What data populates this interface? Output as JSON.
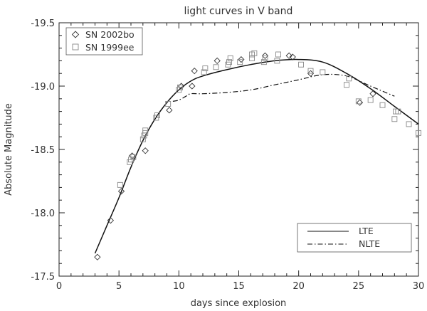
{
  "chart_data": {
    "type": "scatter",
    "title": "light curves in V band",
    "xlabel": "days since explosion",
    "ylabel": "Absolute Magnitude",
    "xlim": [
      0,
      30
    ],
    "ylim": [
      -17.5,
      -19.5
    ],
    "y_axis_inverted": true,
    "x_ticks": [
      0,
      5,
      10,
      15,
      20,
      25,
      30
    ],
    "y_ticks": [
      -17.5,
      -18.0,
      -18.5,
      -19.0,
      -19.5
    ],
    "x_tick_labels": [
      "0",
      "5",
      "10",
      "15",
      "20",
      "25",
      "30"
    ],
    "y_tick_labels": [
      "-17.5",
      "-18.0",
      "-18.5",
      "-19.0",
      "-19.5"
    ],
    "grid": false,
    "legends": [
      {
        "placement": "top-left",
        "entries": [
          {
            "label": "SN 2002bo",
            "marker": "diamond"
          },
          {
            "label": "SN 1999ee",
            "marker": "square"
          }
        ]
      },
      {
        "placement": "bottom-right",
        "entries": [
          {
            "label": "LTE",
            "line": "solid"
          },
          {
            "label": "NLTE",
            "line": "dash-dot"
          }
        ]
      }
    ],
    "series": [
      {
        "name": "SN 2002bo",
        "marker": "diamond",
        "points": [
          [
            3.2,
            -17.65
          ],
          [
            4.3,
            -17.94
          ],
          [
            5.2,
            -18.17
          ],
          [
            6.1,
            -18.45
          ],
          [
            7.2,
            -18.49
          ],
          [
            9.2,
            -18.81
          ],
          [
            10.2,
            -19.0
          ],
          [
            11.1,
            -19.0
          ],
          [
            11.3,
            -19.12
          ],
          [
            13.2,
            -19.2
          ],
          [
            15.2,
            -19.21
          ],
          [
            17.2,
            -19.24
          ],
          [
            19.2,
            -19.24
          ],
          [
            19.5,
            -19.23
          ],
          [
            21.0,
            -19.1
          ],
          [
            25.1,
            -18.87
          ],
          [
            26.2,
            -18.94
          ]
        ]
      },
      {
        "name": "SN 1999ee",
        "marker": "square",
        "points": [
          [
            5.1,
            -18.22
          ],
          [
            5.9,
            -18.4
          ],
          [
            6.0,
            -18.42
          ],
          [
            6.2,
            -18.44
          ],
          [
            7.0,
            -18.58
          ],
          [
            7.1,
            -18.61
          ],
          [
            7.2,
            -18.63
          ],
          [
            7.2,
            -18.65
          ],
          [
            8.1,
            -18.75
          ],
          [
            8.2,
            -18.77
          ],
          [
            9.1,
            -18.86
          ],
          [
            10.0,
            -18.97
          ],
          [
            10.1,
            -18.99
          ],
          [
            12.1,
            -19.11
          ],
          [
            12.2,
            -19.14
          ],
          [
            13.1,
            -19.15
          ],
          [
            14.1,
            -19.17
          ],
          [
            14.2,
            -19.19
          ],
          [
            14.3,
            -19.22
          ],
          [
            15.1,
            -19.19
          ],
          [
            16.1,
            -19.22
          ],
          [
            16.1,
            -19.25
          ],
          [
            16.3,
            -19.26
          ],
          [
            17.1,
            -19.19
          ],
          [
            17.2,
            -19.22
          ],
          [
            18.2,
            -19.2
          ],
          [
            18.3,
            -19.25
          ],
          [
            20.2,
            -19.17
          ],
          [
            21.0,
            -19.12
          ],
          [
            22.0,
            -19.11
          ],
          [
            24.0,
            -19.01
          ],
          [
            24.2,
            -19.06
          ],
          [
            25.0,
            -18.88
          ],
          [
            26.0,
            -18.89
          ],
          [
            27.0,
            -18.85
          ],
          [
            28.0,
            -18.74
          ],
          [
            28.1,
            -18.8
          ],
          [
            28.3,
            -18.8
          ],
          [
            29.2,
            -18.7
          ],
          [
            30.0,
            -18.63
          ]
        ]
      },
      {
        "name": "LTE",
        "line": "solid",
        "points": [
          [
            3.0,
            -17.68
          ],
          [
            4.0,
            -17.9
          ],
          [
            5.0,
            -18.12
          ],
          [
            6.0,
            -18.36
          ],
          [
            7.0,
            -18.57
          ],
          [
            8.0,
            -18.74
          ],
          [
            9.0,
            -18.87
          ],
          [
            10.0,
            -18.97
          ],
          [
            11.0,
            -19.04
          ],
          [
            12.0,
            -19.08
          ],
          [
            14.0,
            -19.13
          ],
          [
            16.0,
            -19.17
          ],
          [
            18.0,
            -19.2
          ],
          [
            20.0,
            -19.21
          ],
          [
            22.0,
            -19.19
          ],
          [
            24.0,
            -19.1
          ],
          [
            26.0,
            -18.98
          ],
          [
            28.0,
            -18.84
          ],
          [
            30.0,
            -18.7
          ]
        ]
      },
      {
        "name": "NLTE",
        "line": "dash-dot",
        "points": [
          [
            9.5,
            -18.88
          ],
          [
            10.0,
            -18.89
          ],
          [
            10.6,
            -18.92
          ],
          [
            11.0,
            -18.94
          ],
          [
            12.0,
            -18.94
          ],
          [
            14.0,
            -18.95
          ],
          [
            16.0,
            -18.97
          ],
          [
            18.0,
            -19.01
          ],
          [
            20.0,
            -19.05
          ],
          [
            22.0,
            -19.09
          ],
          [
            24.0,
            -19.08
          ],
          [
            26.0,
            -19.0
          ],
          [
            28.0,
            -18.92
          ]
        ]
      }
    ]
  }
}
